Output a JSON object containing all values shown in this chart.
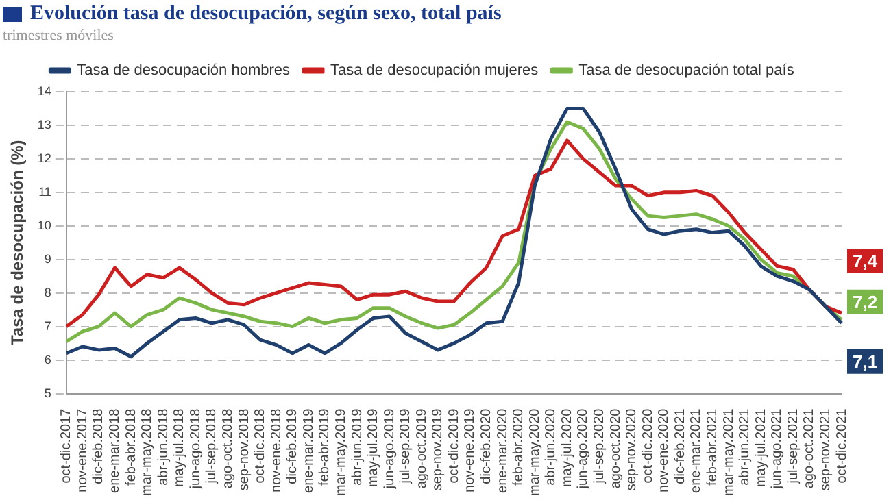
{
  "chart_data": {
    "type": "line",
    "title": "Evolución tasa de desocupación, según sexo, total país",
    "subtitle": "trimestres móviles",
    "ylabel": "Tasa de desocupación (%)",
    "categories": [
      "oct-dic.2017",
      "nov-ene.2017",
      "dic-feb.2018",
      "ene-mar.2018",
      "feb-abr.2018",
      "mar-may.2018",
      "abr-jun.2018",
      "may-jul.2018",
      "jun-ago.2018",
      "jul-sep.2018",
      "ago-oct.2018",
      "sep-nov.2018",
      "oct-dic.2018",
      "nov-ene.2018",
      "dic-feb.2019",
      "ene-mar.2019",
      "feb-abr.2019",
      "mar-may.2019",
      "abr-jun.2019",
      "may-jul.2019",
      "jun-ago.2019",
      "jul-sep.2019",
      "ago-oct.2019",
      "sep-nov.2019",
      "oct-dic.2019",
      "nov-ene.2019",
      "dic-feb.2020",
      "ene-mar.2020",
      "feb-abr.2020",
      "mar-may.2020",
      "abr-jun.2020",
      "may-jul.2020",
      "jun-ago.2020",
      "jul-sep.2020",
      "ago-oct.2020",
      "sep-nov.2020",
      "oct-dic.2020",
      "nov-ene.2020",
      "dic-feb.2021",
      "ene-mar.2021",
      "feb-abr.2021",
      "mar-may.2021",
      "abr-jun.2021",
      "may-jul.2021",
      "jun-ago.2021",
      "jul-sep.2021",
      "ago-oct.2021",
      "sep-nov.2021",
      "oct-dic.2021"
    ],
    "series": [
      {
        "name": "Tasa de desocupación hombres",
        "color": "#1f3f6e",
        "values": [
          6.2,
          6.4,
          6.3,
          6.35,
          6.1,
          6.5,
          6.85,
          7.2,
          7.25,
          7.1,
          7.2,
          7.05,
          6.6,
          6.45,
          6.2,
          6.45,
          6.2,
          6.5,
          6.9,
          7.25,
          7.3,
          6.8,
          6.55,
          6.3,
          6.5,
          6.75,
          7.1,
          7.15,
          8.3,
          11.2,
          12.6,
          13.5,
          13.5,
          12.8,
          11.7,
          10.5,
          9.9,
          9.75,
          9.85,
          9.9,
          9.8,
          9.85,
          9.4,
          8.8,
          8.5,
          8.35,
          8.1,
          7.6,
          7.1
        ],
        "value_labels": [
          null,
          null,
          null,
          null,
          null,
          null,
          null,
          null,
          null,
          null,
          null,
          null,
          null,
          null,
          null,
          null,
          null,
          null,
          null,
          null,
          null,
          null,
          null,
          null,
          null,
          null,
          null,
          null,
          null,
          null,
          null,
          null,
          null,
          null,
          null,
          null,
          null,
          null,
          null,
          null,
          null,
          null,
          null,
          null,
          null,
          null,
          null,
          null,
          "7,1"
        ]
      },
      {
        "name": "Tasa de desocupación mujeres",
        "color": "#cc1f1f",
        "values": [
          7.0,
          7.35,
          7.95,
          8.75,
          8.2,
          8.55,
          8.45,
          8.75,
          8.4,
          8.0,
          7.7,
          7.65,
          7.85,
          8.0,
          8.15,
          8.3,
          8.25,
          8.2,
          7.8,
          7.95,
          7.95,
          8.05,
          7.85,
          7.75,
          7.75,
          8.3,
          8.75,
          9.7,
          9.9,
          11.5,
          11.7,
          12.55,
          12.0,
          11.6,
          11.2,
          11.2,
          10.9,
          11.0,
          11.0,
          11.05,
          10.9,
          10.4,
          9.8,
          9.3,
          8.8,
          8.7,
          8.1,
          7.6,
          7.4
        ],
        "value_labels": [
          null,
          null,
          null,
          null,
          null,
          null,
          null,
          null,
          null,
          null,
          null,
          null,
          null,
          null,
          null,
          null,
          null,
          null,
          null,
          null,
          null,
          null,
          null,
          null,
          null,
          null,
          null,
          null,
          null,
          null,
          null,
          null,
          null,
          null,
          null,
          null,
          null,
          null,
          null,
          null,
          null,
          null,
          null,
          null,
          null,
          null,
          null,
          null,
          "7,4"
        ]
      },
      {
        "name": "Tasa de desocupación total país",
        "color": "#7ab648",
        "values": [
          6.55,
          6.85,
          7.0,
          7.4,
          7.0,
          7.35,
          7.5,
          7.85,
          7.7,
          7.5,
          7.4,
          7.3,
          7.15,
          7.1,
          7.0,
          7.25,
          7.1,
          7.2,
          7.25,
          7.55,
          7.55,
          7.3,
          7.1,
          6.95,
          7.05,
          7.4,
          7.8,
          8.2,
          8.9,
          11.3,
          12.3,
          13.1,
          12.9,
          12.3,
          11.4,
          10.8,
          10.3,
          10.25,
          10.3,
          10.35,
          10.2,
          10.0,
          9.6,
          9.0,
          8.6,
          8.5,
          8.1,
          7.6,
          7.2
        ],
        "value_labels": [
          null,
          null,
          null,
          null,
          null,
          null,
          null,
          null,
          null,
          null,
          null,
          null,
          null,
          null,
          null,
          null,
          null,
          null,
          null,
          null,
          null,
          null,
          null,
          null,
          null,
          null,
          null,
          null,
          null,
          null,
          null,
          null,
          null,
          null,
          null,
          null,
          null,
          null,
          null,
          null,
          null,
          null,
          null,
          null,
          null,
          null,
          null,
          null,
          "7,2"
        ]
      }
    ],
    "ylim": [
      5,
      14
    ],
    "yticks": [
      5,
      6,
      7,
      8,
      9,
      10,
      11,
      12,
      13,
      14
    ],
    "grid": "y",
    "legend": "top",
    "marker": "none",
    "line_style": "solid"
  }
}
